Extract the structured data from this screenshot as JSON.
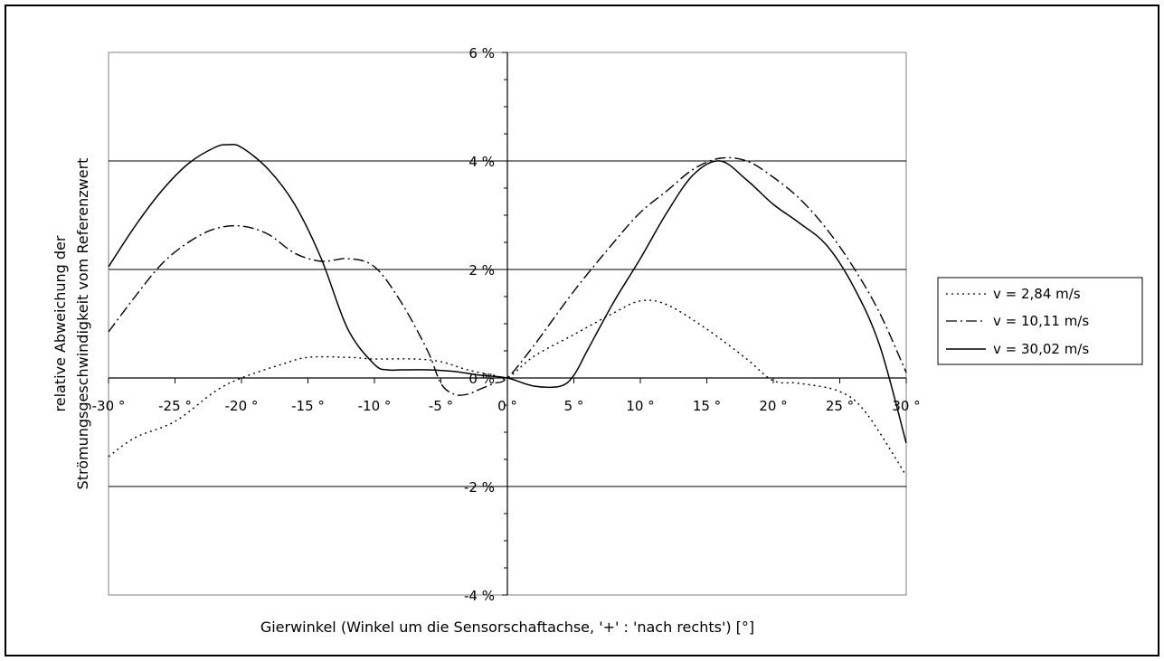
{
  "chart_data": {
    "type": "line",
    "title": "",
    "xlabel": "Gierwinkel (Winkel um die Sensorschaftachse, '+' : 'nach rechts') [°]",
    "ylabel_lines": [
      "relative Abweichung der",
      "Strömungsgeschwindigkeit vom Referenzwert"
    ],
    "xlim": [
      -30,
      30
    ],
    "ylim": [
      -4,
      6
    ],
    "x_ticks": [
      -30,
      -25,
      -20,
      -15,
      -10,
      -5,
      0,
      5,
      10,
      15,
      20,
      25,
      30
    ],
    "x_tick_labels": [
      "-30 °",
      "-25 °",
      "-20 °",
      "-15 °",
      "-10 °",
      "-5 °",
      "0 °",
      "5 °",
      "10 °",
      "15 °",
      "20 °",
      "25 °",
      "30 °"
    ],
    "y_ticks": [
      -4,
      -2,
      0,
      2,
      4,
      6
    ],
    "y_tick_labels": [
      "-4 %",
      "-2 %",
      "0 %",
      "2 %",
      "4 %",
      "6 %"
    ],
    "gridlines_y": [
      -2,
      2,
      4
    ],
    "legend_position": "right",
    "series": [
      {
        "name": "v = 2,84 m/s",
        "style": "dotted",
        "x": [
          -30,
          -28,
          -25,
          -22,
          -20,
          -17,
          -15,
          -12,
          -10,
          -7,
          -5,
          -3,
          -1,
          0,
          2,
          5,
          8,
          10,
          12,
          15,
          18,
          20,
          22,
          25,
          27,
          30
        ],
        "y": [
          -1.45,
          -1.1,
          -0.8,
          -0.25,
          0.0,
          0.25,
          0.38,
          0.38,
          0.35,
          0.35,
          0.3,
          0.15,
          0.05,
          0.0,
          0.4,
          0.8,
          1.2,
          1.42,
          1.35,
          0.9,
          0.35,
          -0.05,
          -0.1,
          -0.25,
          -0.65,
          -1.8
        ]
      },
      {
        "name": "v = 10,11 m/s",
        "style": "dash-dot",
        "x": [
          -30,
          -28,
          -26,
          -24,
          -22,
          -20,
          -18,
          -16,
          -14,
          -12,
          -10,
          -8,
          -6,
          -5,
          -4,
          -3,
          -2,
          -1,
          0,
          2,
          5,
          8,
          10,
          12,
          14,
          16,
          18,
          20,
          22,
          24,
          26,
          28,
          30
        ],
        "y": [
          0.85,
          1.5,
          2.1,
          2.5,
          2.75,
          2.8,
          2.65,
          2.3,
          2.15,
          2.2,
          2.05,
          1.4,
          0.5,
          -0.1,
          -0.3,
          -0.3,
          -0.2,
          -0.1,
          0.0,
          0.6,
          1.6,
          2.5,
          3.05,
          3.45,
          3.85,
          4.05,
          4.0,
          3.7,
          3.3,
          2.75,
          2.05,
          1.2,
          0.1
        ]
      },
      {
        "name": "v = 30,02 m/s",
        "style": "solid",
        "x": [
          -30,
          -28,
          -26,
          -24,
          -22,
          -21,
          -20,
          -18,
          -16,
          -14,
          -12,
          -10,
          -9,
          -8,
          -6,
          -4,
          -2,
          0,
          2,
          4,
          5,
          6,
          8,
          10,
          12,
          14,
          16,
          18,
          20,
          22,
          24,
          26,
          28,
          30
        ],
        "y": [
          2.05,
          2.8,
          3.45,
          3.95,
          4.25,
          4.3,
          4.25,
          3.85,
          3.2,
          2.2,
          0.9,
          0.25,
          0.15,
          0.15,
          0.15,
          0.12,
          0.05,
          0.0,
          -0.15,
          -0.15,
          0.05,
          0.5,
          1.4,
          2.2,
          3.05,
          3.75,
          4.0,
          3.65,
          3.2,
          2.85,
          2.45,
          1.7,
          0.6,
          -1.2
        ]
      }
    ]
  }
}
